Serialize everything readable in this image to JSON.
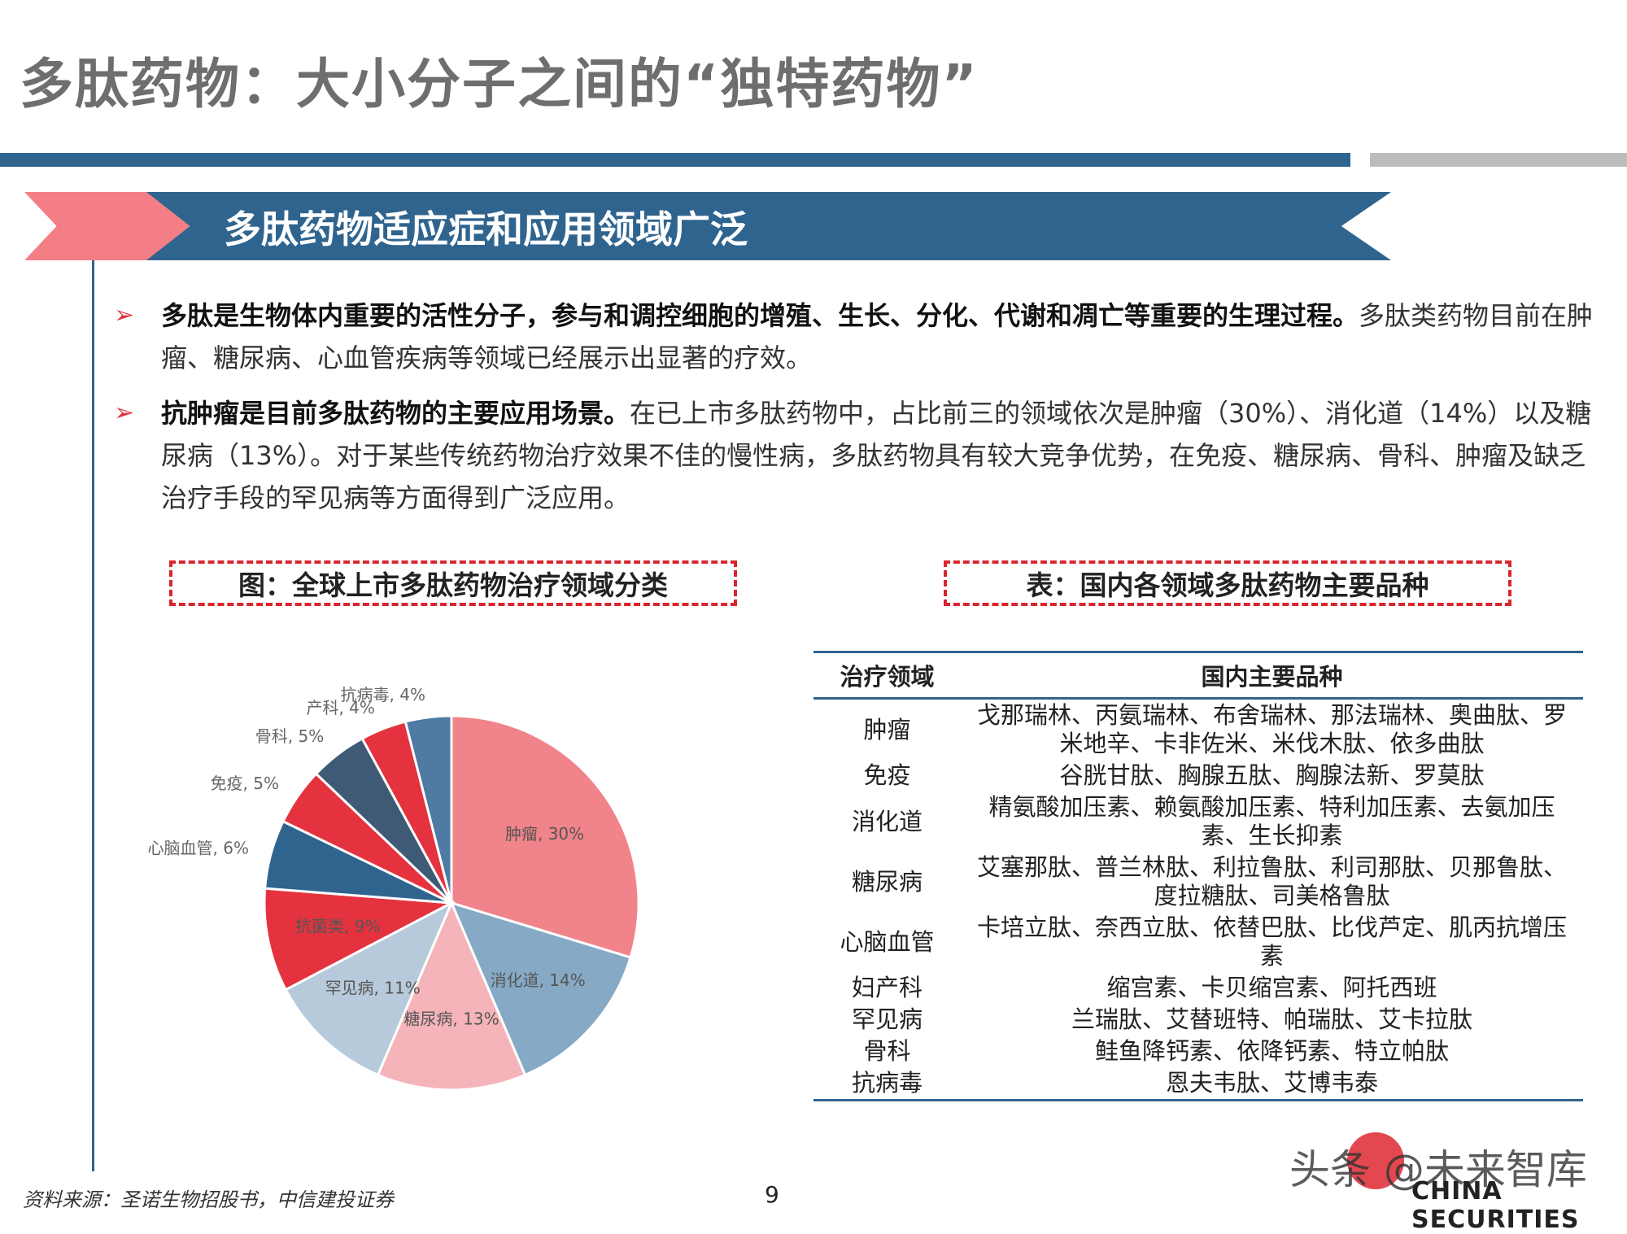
{
  "title": "多肽药物：大小分子之间的“独特药物”",
  "banner": "多肽药物适应症和应用领域广泛",
  "bullets": [
    {
      "bold": "多肽是生物体内重要的活性分子，参与和调控细胞的增殖、生长、分化、代谢和凋亡等重要的生理过程。",
      "text": "多肽类药物目前在肿瘤、糖尿病、心血管疾病等领域已经展示出显著的疗效。"
    },
    {
      "bold": "抗肿瘤是目前多肽药物的主要应用场景。",
      "text": "在已上市多肽药物中，占比前三的领域依次是肿瘤（30%）、消化道（14%）以及糖尿病（13%）。对于某些传统药物治疗效果不佳的慢性病，多肽药物具有较大竞争优势，在免疫、糖尿病、骨科、肿瘤及缺乏治疗手段的罕见病等方面得到广泛应用。"
    }
  ],
  "fig_caption": "图：全球上市多肽药物治疗领域分类",
  "table_caption": "表：国内各领域多肽药物主要品种",
  "chart_data": {
    "type": "pie",
    "title": "",
    "slices": [
      {
        "label": "肿瘤",
        "value": 30,
        "text": "肿瘤, 30%",
        "color": "#f1838a"
      },
      {
        "label": "消化道",
        "value": 14,
        "text": "消化道, 14%",
        "color": "#86a9c5"
      },
      {
        "label": "糖尿病",
        "value": 13,
        "text": "糖尿病, 13%",
        "color": "#f5b4b9"
      },
      {
        "label": "罕见病",
        "value": 11,
        "text": "罕见病, 11%",
        "color": "#b7cadb"
      },
      {
        "label": "抗菌类",
        "value": 9,
        "text": "抗菌类, 9%",
        "color": "#e4333e"
      },
      {
        "label": "心脑血管",
        "value": 6,
        "text": "心脑血管, 6%",
        "color": "#2f648f"
      },
      {
        "label": "免疫",
        "value": 5,
        "text": "免疫, 5%",
        "color": "#e4333e"
      },
      {
        "label": "骨科",
        "value": 5,
        "text": "骨科, 5%",
        "color": "#3e5a75"
      },
      {
        "label": "产科",
        "value": 4,
        "text": "产科, 4%",
        "color": "#e4333e"
      },
      {
        "label": "抗病毒",
        "value": 4,
        "text": "抗病毒, 4%",
        "color": "#4f7aa3"
      }
    ]
  },
  "table": {
    "headers": [
      "治疗领域",
      "国内主要品种"
    ],
    "rows": [
      [
        "肿瘤",
        "戈那瑞林、丙氨瑞林、布舍瑞林、那法瑞林、奥曲肽、罗米地辛、卡非佐米、米伐木肽、依多曲肽"
      ],
      [
        "免疫",
        "谷胱甘肽、胸腺五肽、胸腺法新、罗莫肽"
      ],
      [
        "消化道",
        "精氨酸加压素、赖氨酸加压素、特利加压素、去氨加压素、生长抑素"
      ],
      [
        "糖尿病",
        "艾塞那肽、普兰林肽、利拉鲁肽、利司那肽、贝那鲁肽、度拉糖肽、司美格鲁肽"
      ],
      [
        "心脑血管",
        "卡培立肽、奈西立肽、依替巴肽、比伐芦定、肌丙抗增压素"
      ],
      [
        "妇产科",
        "缩宫素、卡贝缩宫素、阿托西班"
      ],
      [
        "罕见病",
        "兰瑞肽、艾替班特、帕瑞肽、艾卡拉肽"
      ],
      [
        "骨科",
        "鲑鱼降钙素、依降钙素、特立帕肽"
      ],
      [
        "抗病毒",
        "恩夫韦肽、艾博韦泰"
      ]
    ]
  },
  "source": "资料来源：圣诺生物招股书，中信建投证券",
  "page_number": "9",
  "watermark": "头条 @未来智库",
  "watermark_sub": "CHINA SECURITIES"
}
